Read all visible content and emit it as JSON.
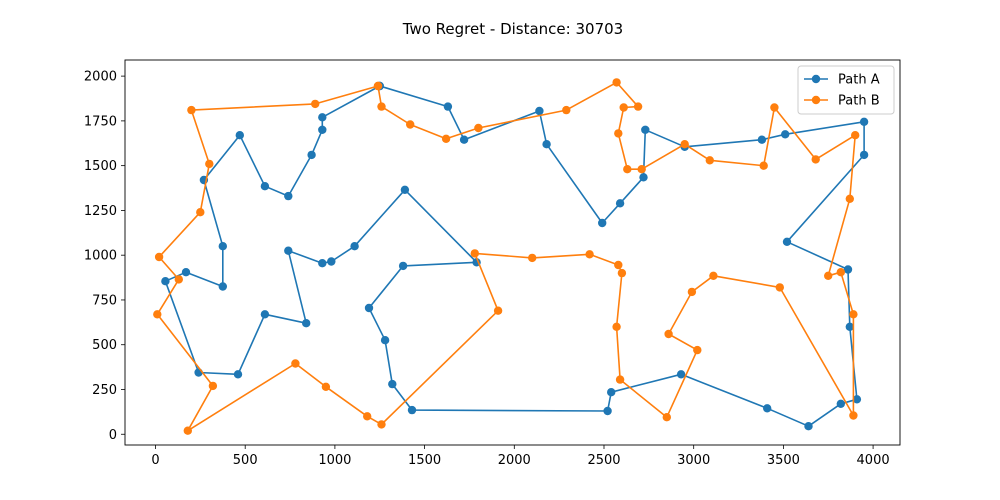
{
  "chart_data": {
    "type": "line",
    "title": "Two Regret - Distance: 30703",
    "xlabel": "",
    "ylabel": "",
    "xlim": [
      -170,
      4150
    ],
    "ylim": [
      -60,
      2090
    ],
    "x_ticks": [
      0,
      500,
      1000,
      1500,
      2000,
      2500,
      3000,
      3500,
      4000
    ],
    "y_ticks": [
      0,
      250,
      500,
      750,
      1000,
      1250,
      1500,
      1750,
      2000
    ],
    "grid": false,
    "legend_position": "top-right",
    "series": [
      {
        "name": "Path A",
        "color": "#1f77b4",
        "points": [
          [
            1250,
            1945
          ],
          [
            1630,
            1830
          ],
          [
            1720,
            1645
          ],
          [
            2140,
            1805
          ],
          [
            2180,
            1620
          ],
          [
            2490,
            1180
          ],
          [
            2590,
            1290
          ],
          [
            2720,
            1435
          ],
          [
            2730,
            1700
          ],
          [
            2950,
            1605
          ],
          [
            3380,
            1645
          ],
          [
            3510,
            1675
          ],
          [
            3950,
            1745
          ],
          [
            3950,
            1560
          ],
          [
            3520,
            1075
          ],
          [
            3860,
            920
          ],
          [
            3870,
            600
          ],
          [
            3910,
            195
          ],
          [
            3820,
            170
          ],
          [
            3640,
            45
          ],
          [
            3410,
            145
          ],
          [
            2930,
            335
          ],
          [
            2540,
            235
          ],
          [
            2520,
            130
          ],
          [
            1430,
            135
          ],
          [
            1320,
            280
          ],
          [
            1280,
            525
          ],
          [
            1190,
            705
          ],
          [
            1380,
            940
          ],
          [
            1790,
            960
          ],
          [
            1390,
            1365
          ],
          [
            1110,
            1050
          ],
          [
            980,
            965
          ],
          [
            930,
            955
          ],
          [
            740,
            1025
          ],
          [
            840,
            620
          ],
          [
            610,
            670
          ],
          [
            460,
            335
          ],
          [
            240,
            345
          ],
          [
            55,
            855
          ],
          [
            170,
            905
          ],
          [
            375,
            825
          ],
          [
            375,
            1050
          ],
          [
            270,
            1420
          ],
          [
            470,
            1670
          ],
          [
            610,
            1385
          ],
          [
            740,
            1330
          ],
          [
            870,
            1560
          ],
          [
            930,
            1700
          ],
          [
            930,
            1770
          ],
          [
            1250,
            1945
          ]
        ]
      },
      {
        "name": "Path B",
        "color": "#ff7f0e",
        "points": [
          [
            1240,
            1945
          ],
          [
            890,
            1845
          ],
          [
            200,
            1810
          ],
          [
            300,
            1510
          ],
          [
            250,
            1240
          ],
          [
            20,
            990
          ],
          [
            130,
            865
          ],
          [
            10,
            670
          ],
          [
            320,
            270
          ],
          [
            180,
            20
          ],
          [
            780,
            395
          ],
          [
            950,
            265
          ],
          [
            1180,
            100
          ],
          [
            1260,
            55
          ],
          [
            1910,
            690
          ],
          [
            1780,
            1010
          ],
          [
            2100,
            985
          ],
          [
            2420,
            1005
          ],
          [
            2580,
            945
          ],
          [
            2600,
            900
          ],
          [
            2570,
            600
          ],
          [
            2590,
            305
          ],
          [
            2850,
            95
          ],
          [
            3020,
            470
          ],
          [
            2860,
            560
          ],
          [
            2990,
            795
          ],
          [
            3110,
            885
          ],
          [
            3480,
            820
          ],
          [
            3890,
            105
          ],
          [
            3890,
            670
          ],
          [
            3820,
            905
          ],
          [
            3750,
            885
          ],
          [
            3870,
            1315
          ],
          [
            3900,
            1670
          ],
          [
            3680,
            1535
          ],
          [
            3450,
            1825
          ],
          [
            3390,
            1500
          ],
          [
            3090,
            1530
          ],
          [
            2950,
            1620
          ],
          [
            2710,
            1480
          ],
          [
            2630,
            1480
          ],
          [
            2580,
            1680
          ],
          [
            2610,
            1825
          ],
          [
            2690,
            1830
          ],
          [
            2570,
            1965
          ],
          [
            2290,
            1810
          ],
          [
            1800,
            1710
          ],
          [
            1620,
            1650
          ],
          [
            1420,
            1730
          ],
          [
            1260,
            1830
          ],
          [
            1240,
            1945
          ]
        ]
      }
    ]
  }
}
